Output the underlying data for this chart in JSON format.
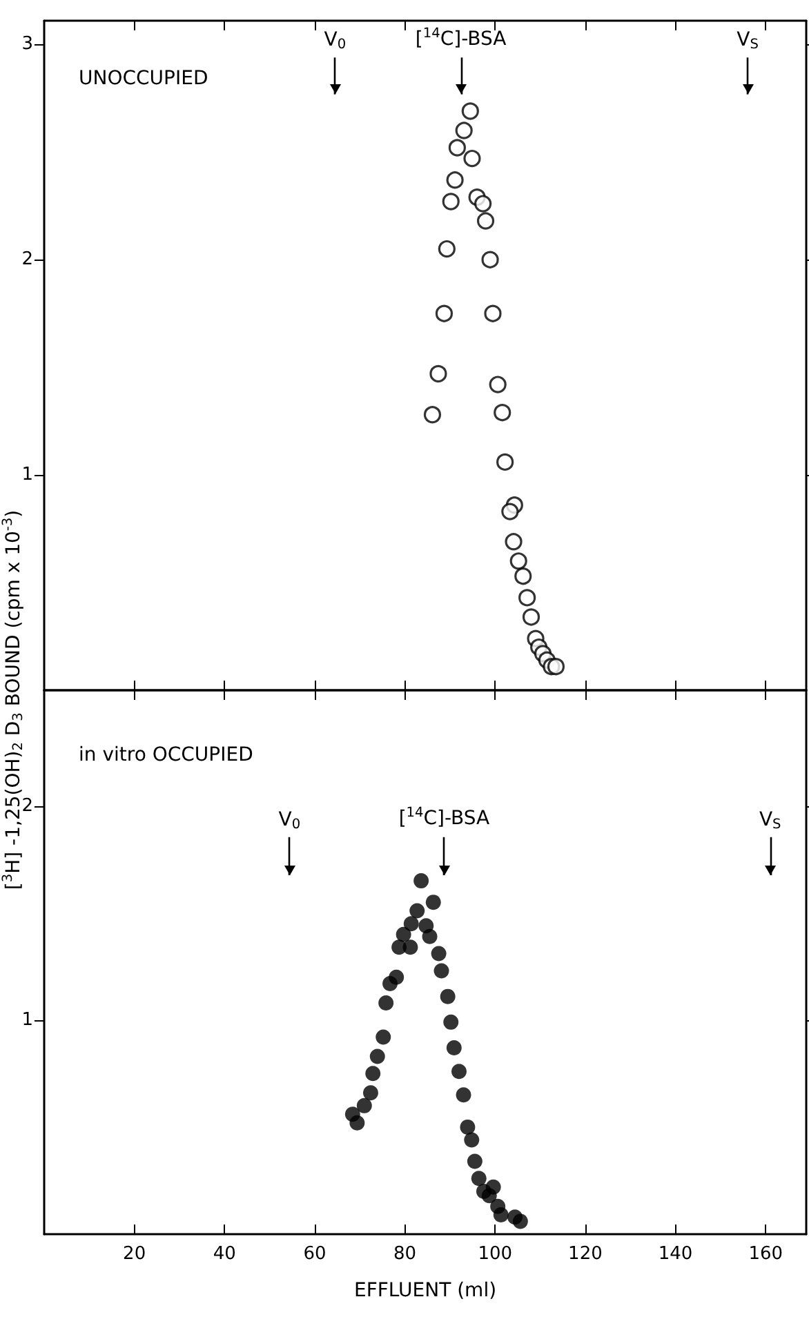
{
  "chart_data": [
    {
      "type": "scatter",
      "title": "UNOCCUPIED",
      "ylabel": "[$^{3}$H] -1,25(OH)$_{2}$ D$_{3}$ BOUND (cpm x 10$^{-3}$)",
      "xlim": [
        0,
        169
      ],
      "xticks": [
        20,
        40,
        60,
        80,
        100,
        120,
        140,
        160
      ],
      "ylim": [
        0,
        3.11
      ],
      "yticks": [
        1,
        2,
        3
      ],
      "tick_labels": "y",
      "grid": false,
      "marker": "circle",
      "ref_lines": [
        {
          "axis": "x",
          "value": 64.5,
          "label": "V$_{0}$"
        },
        {
          "axis": "x",
          "value": 92.4,
          "label": "[$^{14}$C]-BSA"
        },
        {
          "axis": "x",
          "value": 156,
          "label": "V$_{S}$"
        }
      ],
      "series": [
        {
          "color": "#000000",
          "x": [
            94.5,
            93.1,
            91.6,
            94.9,
            91.1,
            90.2,
            96.0,
            97.3,
            97.9,
            89.3,
            98.9,
            88.7,
            99.5,
            87.4,
            100.6,
            86.1,
            101.6,
            102.2,
            104.3,
            103.3,
            104.1,
            105.2,
            106.2,
            107.1,
            108.0,
            109.0,
            109.7,
            110.6,
            111.5,
            112.5,
            113.5
          ],
          "values": [
            2.69,
            2.6,
            2.52,
            2.47,
            2.37,
            2.27,
            2.29,
            2.26,
            2.18,
            2.05,
            2.0,
            1.75,
            1.75,
            1.47,
            1.42,
            1.28,
            1.29,
            1.06,
            0.86,
            0.83,
            0.69,
            0.6,
            0.53,
            0.43,
            0.34,
            0.24,
            0.2,
            0.17,
            0.14,
            0.11,
            0.11
          ]
        }
      ]
    },
    {
      "type": "scatter",
      "title": "in vitro OCCUPIED",
      "xlabel": "EFFLUENT (ml)",
      "xlim": [
        0,
        169
      ],
      "xticks": [
        20,
        40,
        60,
        80,
        100,
        120,
        140,
        160
      ],
      "ylim": [
        0,
        2.54
      ],
      "yticks": [
        1,
        2
      ],
      "grid": false,
      "marker": "circle",
      "ref_lines": [
        {
          "axis": "x",
          "value": 54.4,
          "label": "V$_{0}$"
        },
        {
          "axis": "x",
          "value": 88.7,
          "label": "[$^{14}$C]-BSA"
        },
        {
          "axis": "x",
          "value": 161,
          "label": "V$_{S}$"
        }
      ],
      "series": [
        {
          "color": "#000000",
          "x": [
            68.4,
            69.4,
            71.0,
            72.4,
            72.9,
            73.9,
            75.2,
            75.8,
            76.7,
            78.1,
            78.7,
            79.7,
            81.2,
            81.4,
            82.7,
            83.6,
            84.7,
            85.5,
            86.3,
            87.5,
            88.1,
            89.5,
            90.2,
            90.9,
            92.0,
            93.0,
            93.9,
            94.8,
            95.5,
            96.4,
            97.5,
            98.7,
            99.6,
            100.6,
            101.3,
            104.4,
            105.6
          ],
          "values": [
            0.56,
            0.52,
            0.6,
            0.66,
            0.75,
            0.83,
            0.92,
            1.08,
            1.17,
            1.2,
            1.34,
            1.4,
            1.34,
            1.45,
            1.51,
            1.65,
            1.44,
            1.39,
            1.55,
            1.31,
            1.23,
            1.11,
            0.99,
            0.87,
            0.76,
            0.65,
            0.5,
            0.44,
            0.34,
            0.26,
            0.2,
            0.18,
            0.22,
            0.13,
            0.09,
            0.08,
            0.06
          ]
        }
      ]
    }
  ]
}
